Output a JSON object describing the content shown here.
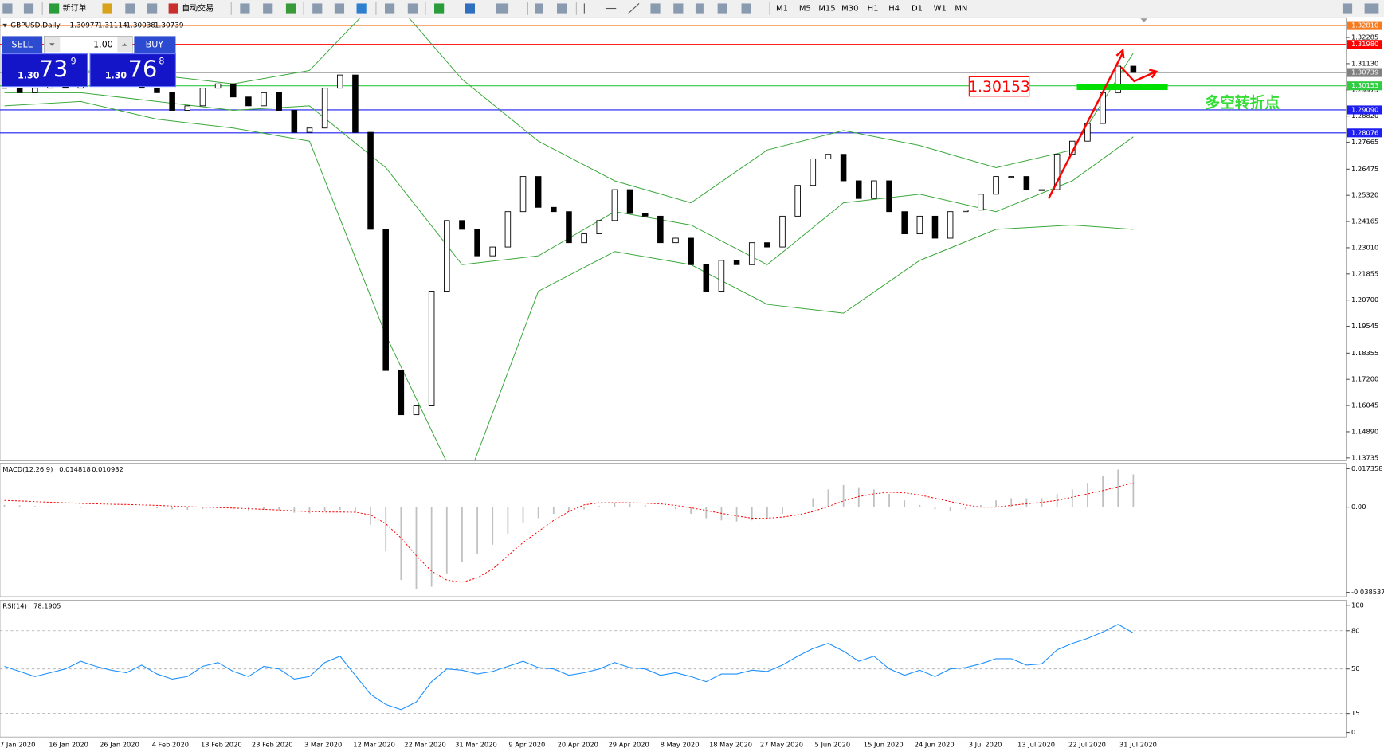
{
  "toolbar": {
    "new_order": "新订单",
    "auto_trading": "自动交易",
    "timeframes": [
      "M1",
      "M5",
      "M15",
      "M30",
      "H1",
      "H4",
      "D1",
      "W1",
      "MN"
    ]
  },
  "trade_panel": {
    "sell": "SELL",
    "buy": "BUY",
    "lot": "1.00",
    "sell_price": {
      "prefix": "1.30",
      "big": "73",
      "small": "9"
    },
    "buy_price": {
      "prefix": "1.30",
      "big": "76",
      "small": "8"
    }
  },
  "chart_data": [
    {
      "type": "candlestick",
      "title": "GBPUSD,Daily",
      "ohlc": [
        1.30977,
        1.31114,
        1.30038,
        1.30739
      ],
      "up_color": "#ffffff",
      "down_color": "#000000",
      "band_color": "#3aa83a",
      "closes": [
        1.3005,
        1.2985,
        1.3005,
        1.3024,
        1.3005,
        1.3024,
        1.3032,
        1.3036,
        1.3024,
        1.3005,
        1.2985,
        1.2907,
        1.2927,
        1.3005,
        1.3024,
        1.2966,
        1.2927,
        1.2985,
        1.2907,
        1.281,
        1.2829,
        1.3005,
        1.3063,
        1.281,
        1.2382,
        1.1759,
        1.1564,
        1.1603,
        1.2109,
        1.2421,
        1.2382,
        1.2265,
        1.2304,
        1.246,
        1.2615,
        1.2479,
        1.246,
        1.2323,
        1.2362,
        1.2421,
        1.2557,
        1.2452,
        1.244,
        1.2323,
        1.2343,
        1.2226,
        1.2109,
        1.2245,
        1.2226,
        1.2323,
        1.2304,
        1.244,
        1.2576,
        1.2693,
        1.2713,
        1.2596,
        1.2518,
        1.2596,
        1.246,
        1.2362,
        1.244,
        1.2343,
        1.246,
        1.2467,
        1.2537,
        1.2615,
        1.2615,
        1.2557,
        1.2557,
        1.2713,
        1.2771,
        1.2849,
        1.2985,
        1.3102,
        1.30739
      ],
      "bands": [
        [
          1.3044,
          1.3083,
          1.3063,
          1.3024,
          1.3083,
          1.3433,
          1.3044,
          1.2771,
          1.2596,
          1.2499,
          1.2732,
          1.2818,
          1.2752,
          1.2654,
          1.2732,
          1.316
        ],
        [
          1.2985,
          1.2985,
          1.2946,
          1.2907,
          1.2927,
          1.2654,
          1.2226,
          1.2265,
          1.246,
          1.2401,
          1.2226,
          1.2499,
          1.2537,
          1.246,
          1.2596,
          1.279
        ],
        [
          1.2927,
          1.2946,
          1.2868,
          1.2829,
          1.2771,
          1.1915,
          1.1214,
          1.2109,
          1.2284,
          1.2226,
          1.2051,
          1.2012,
          1.2245,
          1.2382,
          1.2401,
          1.2382
        ]
      ],
      "ylim": [
        1.1361,
        1.3316
      ],
      "yticks": [
        1.32285,
        {
          "value": 1.3113,
          "label": "1.31130"
        },
        {
          "value": 1.29975,
          "label": "1.29975"
        },
        {
          "value": 1.2882,
          "label": "1.28820"
        },
        {
          "value": 1.27665,
          "label": "1.27665"
        },
        1.26475,
        {
          "value": 1.2532,
          "label": "1.25320"
        },
        1.24165,
        {
          "value": 1.2301,
          "label": "1.23010"
        },
        1.21855,
        {
          "value": 1.207,
          "label": "1.20700"
        },
        1.19545,
        1.18355,
        {
          "value": 1.172,
          "label": "1.17200"
        },
        1.16045,
        {
          "value": 1.1489,
          "label": "1.14890"
        },
        1.13735
      ],
      "levels": [
        {
          "value": 1.3281,
          "label": "1.32810",
          "color": "#f47b20"
        },
        {
          "value": 1.3198,
          "label": "1.31980",
          "color": "#ff0000"
        },
        {
          "value": 1.30739,
          "color": "#808080"
        },
        {
          "value": 1.30153,
          "color": "#2ecc40"
        },
        {
          "value": 1.2909,
          "label": "1.29090",
          "color": "#1e1ef0"
        },
        {
          "value": 1.28076,
          "color": "#1e1ef0"
        }
      ],
      "annotation": {
        "price": 1.30153,
        "text": "多空转折点"
      },
      "date_labels": [
        "7 Jan 2020",
        "16 Jan 2020",
        "26 Jan 2020",
        "4 Feb 2020",
        "13 Feb 2020",
        "23 Feb 2020",
        "3 Mar 2020",
        "12 Mar 2020",
        "22 Mar 2020",
        "31 Mar 2020",
        "9 Apr 2020",
        "20 Apr 2020",
        "29 Apr 2020",
        "8 May 2020",
        "18 May 2020",
        "27 May 2020",
        "5 Jun 2020",
        "15 Jun 2020",
        "24 Jun 2020",
        "3 Jul 2020",
        "13 Jul 2020",
        "22 Jul 2020",
        "31 Jul 2020"
      ]
    },
    {
      "type": "macd",
      "title": "MACD(12,26,9)",
      "current": [
        0.014818,
        0.010932
      ],
      "hist_color": "#c0c0c0",
      "signal_color": "#ff0000",
      "histogram": [
        0.001,
        0.0008,
        0.0005,
        0.0003,
        0.0,
        -0.0003,
        -0.0002,
        0.0,
        0.0002,
        0.0001,
        -0.0005,
        -0.001,
        -0.0012,
        -0.0008,
        -0.0005,
        -0.001,
        -0.0015,
        -0.0012,
        -0.0018,
        -0.0025,
        -0.0028,
        -0.002,
        -0.0012,
        -0.0025,
        -0.008,
        -0.02,
        -0.033,
        -0.037,
        -0.036,
        -0.03,
        -0.025,
        -0.021,
        -0.017,
        -0.012,
        -0.007,
        -0.005,
        -0.003,
        -0.002,
        -0.001,
        0.0005,
        0.002,
        0.0015,
        0.001,
        0.0,
        -0.001,
        -0.003,
        -0.005,
        -0.006,
        -0.0065,
        -0.006,
        -0.005,
        -0.003,
        0.0,
        0.004,
        0.008,
        0.01,
        0.009,
        0.008,
        0.006,
        0.003,
        0.001,
        -0.001,
        -0.002,
        -0.001,
        0.001,
        0.003,
        0.004,
        0.004,
        0.004,
        0.006,
        0.008,
        0.011,
        0.014,
        0.017,
        0.014818
      ],
      "signal": [
        0.003,
        0.0028,
        0.0025,
        0.0022,
        0.002,
        0.0017,
        0.0015,
        0.0013,
        0.0012,
        0.001,
        0.0008,
        0.0005,
        0.0002,
        0.0,
        -0.0002,
        -0.0004,
        -0.0007,
        -0.001,
        -0.0013,
        -0.0017,
        -0.002,
        -0.0022,
        -0.0022,
        -0.0023,
        -0.0035,
        -0.0075,
        -0.014,
        -0.022,
        -0.029,
        -0.033,
        -0.034,
        -0.032,
        -0.028,
        -0.022,
        -0.016,
        -0.011,
        -0.006,
        -0.002,
        0.001,
        0.002,
        0.002,
        0.002,
        0.0018,
        0.0015,
        0.0008,
        -0.0003,
        -0.0015,
        -0.0028,
        -0.004,
        -0.005,
        -0.005,
        -0.0045,
        -0.0035,
        -0.002,
        0.0003,
        0.0028,
        0.0048,
        0.006,
        0.0068,
        0.0065,
        0.0055,
        0.004,
        0.0025,
        0.001,
        0.0,
        0.0,
        0.0008,
        0.0015,
        0.0022,
        0.003,
        0.0045,
        0.006,
        0.0075,
        0.0092,
        0.010932
      ],
      "ylim": [
        -0.0405,
        0.0198
      ],
      "yticks": [
        0.017358,
        {
          "value": 0,
          "label": "0.00"
        },
        -0.038537
      ]
    },
    {
      "type": "rsi",
      "title": "RSI(14)",
      "current": 78.1905,
      "color": "#1e90ff",
      "values": [
        52,
        48,
        44,
        47,
        50,
        56,
        52,
        49,
        47,
        53,
        46,
        42,
        44,
        52,
        55,
        48,
        44,
        52,
        50,
        42,
        44,
        55,
        60,
        45,
        30,
        22,
        18,
        24,
        40,
        50,
        49,
        46,
        48,
        52,
        56,
        51,
        50,
        45,
        47,
        50,
        55,
        51,
        50,
        45,
        47,
        44,
        40,
        46,
        46,
        49,
        48,
        53,
        60,
        66,
        70,
        64,
        56,
        60,
        50,
        45,
        49,
        44,
        50,
        51,
        54,
        58,
        58,
        53,
        54,
        65,
        70,
        74,
        79,
        85,
        78.1905
      ],
      "ylim": [
        -3.5,
        104
      ],
      "yticks": [
        100,
        80,
        50,
        15,
        0
      ],
      "levels": [
        80,
        50,
        15
      ]
    }
  ]
}
